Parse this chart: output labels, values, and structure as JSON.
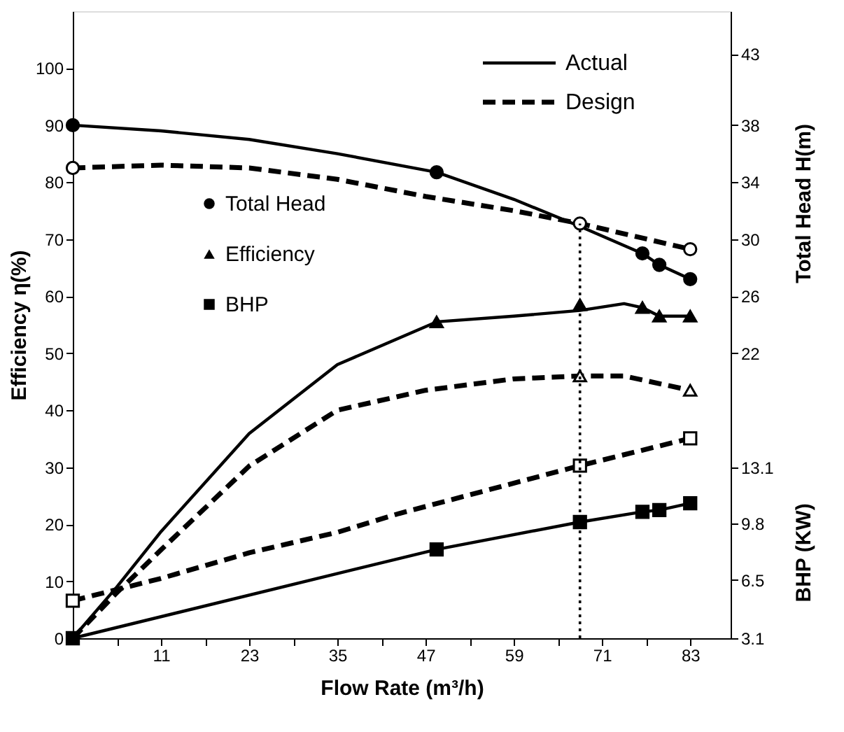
{
  "chart_data": {
    "type": "line",
    "xlabel": "Flow Rate (m³/h)",
    "ylabel": "Efficiency η(%)",
    "y2label": "Total Head H(m)",
    "y3label": "BHP (KW)",
    "xlim": [
      -1,
      88.5
    ],
    "xticks": [
      11,
      23,
      35,
      47,
      59,
      71,
      83,
      {
        "value": 5,
        "label": null
      },
      {
        "value": 17,
        "label": null
      },
      {
        "value": 29,
        "label": null
      },
      {
        "value": 41,
        "label": null
      },
      {
        "value": 53,
        "label": null
      },
      {
        "value": 65,
        "label": null
      },
      {
        "value": 77,
        "label": null
      }
    ],
    "ylim": [
      0,
      110
    ],
    "yticks": [
      0,
      10,
      20,
      30,
      40,
      50,
      60,
      70,
      80,
      90,
      100
    ],
    "y2lim": [
      2,
      46
    ],
    "y2ticks": [
      22,
      26,
      30,
      34,
      38,
      43
    ],
    "y3lim": [
      3.1,
      39.8
    ],
    "y3ticks": [
      3.1,
      6.5,
      9.8,
      13.1
    ],
    "grid": false,
    "legend": "top left",
    "series": [
      {
        "axis": "y2",
        "line_style": "solid",
        "color": "#000000",
        "x": [
          -1,
          11,
          23,
          35,
          48.5,
          59,
          68,
          76.5,
          78.8,
          83
        ],
        "values": [
          38,
          37.6,
          37.0,
          36.0,
          34.7,
          32.8,
          30.9,
          29.0,
          28.2,
          27.2
        ]
      },
      {
        "axis": "y2",
        "line_style": "dashed",
        "color": "#000000",
        "x": [
          -1,
          11,
          23,
          35,
          47,
          59,
          68,
          83
        ],
        "values": [
          35.0,
          35.2,
          35.0,
          34.2,
          33.0,
          32.0,
          31.1,
          29.3
        ]
      },
      {
        "line_style": "solid",
        "color": "#000000",
        "x": [
          -1,
          5,
          11,
          23,
          35,
          48.5,
          59,
          68,
          74,
          76.5,
          78.8,
          83
        ],
        "values": [
          0,
          9,
          18.7,
          35.9,
          48,
          55.5,
          56.5,
          57.5,
          58.7,
          58.0,
          56.5,
          56.5
        ]
      },
      {
        "line_style": "dashed",
        "color": "#000000",
        "x": [
          -1,
          5,
          11,
          23,
          35,
          47,
          59,
          68,
          74,
          83
        ],
        "values": [
          0,
          8,
          15.5,
          30.2,
          40,
          43.5,
          45.5,
          46,
          46,
          43.5
        ]
      },
      {
        "axis": "y3",
        "line_style": "solid",
        "color": "#000000",
        "x": [
          -1,
          48.5,
          68,
          76.5,
          78.8,
          83
        ],
        "values": [
          3.1,
          8.3,
          9.9,
          10.5,
          10.6,
          11.0
        ]
      },
      {
        "axis": "y3",
        "line_style": "dashed",
        "color": "#000000",
        "x": [
          -1,
          11,
          23,
          35,
          43.4,
          68,
          83
        ],
        "values": [
          5.3,
          6.6,
          8.1,
          9.3,
          10.4,
          13.2,
          14.8
        ]
      },
      {
        "type": "scatter",
        "name": "Total Head",
        "axis": "y2",
        "marker": "circle",
        "color": "#000000",
        "x": [
          -1,
          48.5,
          76.5,
          78.8,
          83
        ],
        "values": [
          38,
          34.7,
          29.0,
          28.2,
          27.2
        ]
      },
      {
        "type": "scatter",
        "axis": "y2",
        "marker": "circle",
        "color": "#ffffff",
        "x": [
          -1,
          68,
          83
        ],
        "values": [
          35.0,
          31.1,
          29.3
        ]
      },
      {
        "type": "scatter",
        "name": "Efficiency",
        "marker": "triangle",
        "color": "#000000",
        "x": [
          48.5,
          68,
          76.5,
          78.8,
          83
        ],
        "values": [
          55.5,
          58.5,
          58.0,
          56.5,
          56.5
        ]
      },
      {
        "type": "scatter",
        "marker": "triangle",
        "color": "#ffffff",
        "x": [
          68,
          83
        ],
        "values": [
          46,
          43.5
        ]
      },
      {
        "type": "scatter",
        "name": "BHP",
        "axis": "y3",
        "marker": "square",
        "color": "#000000",
        "x": [
          -1,
          48.5,
          68,
          76.5,
          78.8,
          83
        ],
        "values": [
          3.1,
          8.3,
          9.9,
          10.5,
          10.6,
          11.0
        ]
      },
      {
        "type": "scatter",
        "axis": "y3",
        "marker": "square",
        "color": "#ffffff",
        "x": [
          -1,
          68,
          83
        ],
        "values": [
          5.3,
          13.2,
          14.8
        ]
      }
    ],
    "ref_lines": [
      {
        "axis": "x",
        "value": 68,
        "line_style": "dotted",
        "color": "#000000"
      }
    ],
    "annotations": [
      "Actual",
      "Design"
    ]
  }
}
